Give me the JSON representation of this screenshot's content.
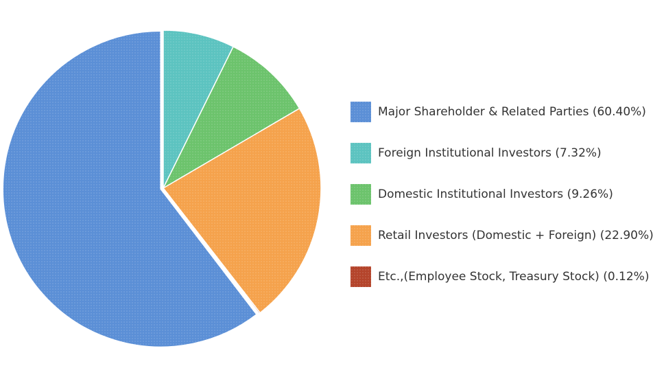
{
  "chart_data": {
    "type": "pie",
    "categories": [
      "Major Shareholder & Related Parties",
      "Foreign Institutional Investors",
      "Domestic Institutional Investors",
      "Retail Investors (Domestic + Foreign)",
      "Etc.,(Employee Stock, Treasury Stock)"
    ],
    "values": [
      60.4,
      7.32,
      9.26,
      22.9,
      0.12
    ],
    "value_labels": [
      "(60.40%)",
      "(7.32%)",
      "(9.26%)",
      "(22.90%)",
      "(0.12%)"
    ],
    "colors": [
      "#5b8fd6",
      "#5cc3c0",
      "#6cc36c",
      "#f5a24c",
      "#b4442b"
    ],
    "legend": "right"
  }
}
